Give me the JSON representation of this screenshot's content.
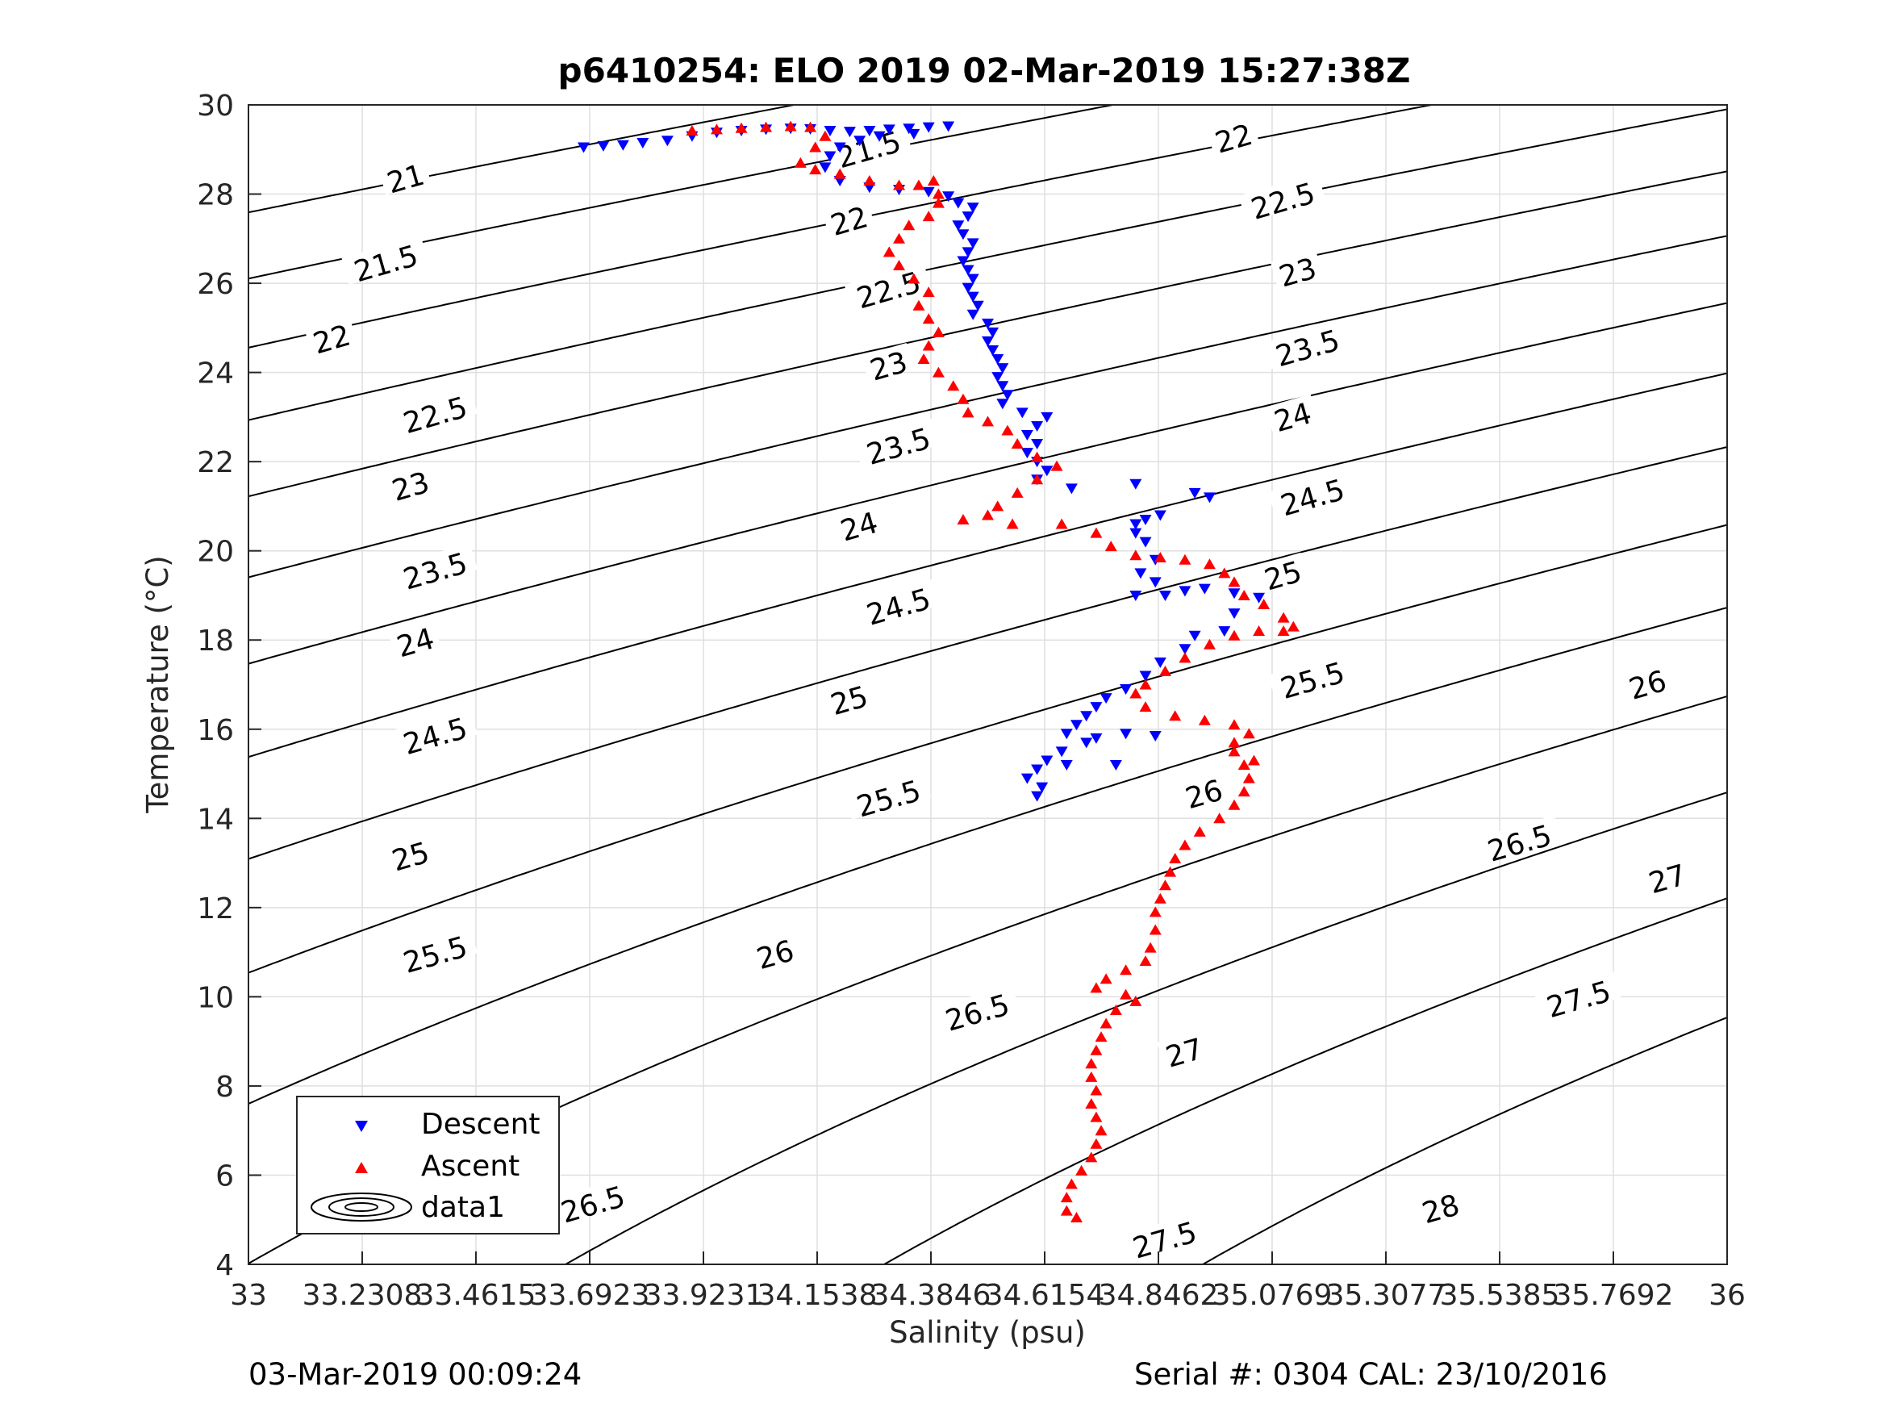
{
  "chart_data": {
    "type": "scatter",
    "title": "p6410254: ELO 2019 02-Mar-2019 15:27:38Z",
    "xlabel": "Salinity (psu)",
    "ylabel": "Temperature (°C)",
    "xlim": [
      33,
      36
    ],
    "ylim": [
      4,
      30
    ],
    "x_ticks": [
      33,
      33.2308,
      33.4615,
      33.6923,
      33.9231,
      34.1538,
      34.3846,
      34.6154,
      34.8462,
      35.0769,
      35.3077,
      35.5385,
      35.7692,
      36
    ],
    "x_tick_labels": [
      "33",
      "33.2308",
      "33.4615",
      "33.6923",
      "33.9231",
      "34.1538",
      "34.3846",
      "34.6154",
      "34.8462",
      "35.0769",
      "35.3077",
      "35.5385",
      "35.7692",
      "36"
    ],
    "y_ticks": [
      4,
      6,
      8,
      10,
      12,
      14,
      16,
      18,
      20,
      22,
      24,
      26,
      28,
      30
    ],
    "y_tick_labels": [
      "4",
      "6",
      "8",
      "10",
      "12",
      "14",
      "16",
      "18",
      "20",
      "22",
      "24",
      "26",
      "28",
      "30"
    ],
    "grid": true,
    "legend_position": "bottom-left",
    "legend": [
      "Descent",
      "Ascent",
      "data1"
    ],
    "series": [
      {
        "name": "Descent",
        "marker": "triangle-down",
        "color": "#0000ff",
        "points": [
          [
            33.68,
            29.05
          ],
          [
            33.72,
            29.08
          ],
          [
            33.76,
            29.1
          ],
          [
            33.8,
            29.15
          ],
          [
            33.85,
            29.2
          ],
          [
            33.9,
            29.3
          ],
          [
            33.95,
            29.38
          ],
          [
            34.0,
            29.42
          ],
          [
            34.05,
            29.45
          ],
          [
            34.1,
            29.47
          ],
          [
            34.14,
            29.46
          ],
          [
            34.18,
            29.42
          ],
          [
            34.22,
            29.4
          ],
          [
            34.26,
            29.42
          ],
          [
            34.3,
            29.45
          ],
          [
            34.34,
            29.47
          ],
          [
            34.38,
            29.5
          ],
          [
            34.42,
            29.52
          ],
          [
            34.35,
            29.35
          ],
          [
            34.28,
            29.3
          ],
          [
            34.24,
            29.2
          ],
          [
            34.2,
            29.05
          ],
          [
            34.18,
            28.85
          ],
          [
            34.17,
            28.6
          ],
          [
            34.2,
            28.3
          ],
          [
            34.26,
            28.15
          ],
          [
            34.32,
            28.1
          ],
          [
            34.38,
            28.05
          ],
          [
            34.42,
            27.95
          ],
          [
            34.44,
            27.8
          ],
          [
            34.47,
            27.7
          ],
          [
            34.46,
            27.5
          ],
          [
            34.44,
            27.3
          ],
          [
            34.45,
            27.1
          ],
          [
            34.47,
            26.9
          ],
          [
            34.46,
            26.7
          ],
          [
            34.45,
            26.5
          ],
          [
            34.46,
            26.3
          ],
          [
            34.47,
            26.1
          ],
          [
            34.46,
            25.9
          ],
          [
            34.47,
            25.7
          ],
          [
            34.48,
            25.5
          ],
          [
            34.47,
            25.3
          ],
          [
            34.5,
            25.1
          ],
          [
            34.51,
            24.9
          ],
          [
            34.5,
            24.7
          ],
          [
            34.51,
            24.5
          ],
          [
            34.52,
            24.3
          ],
          [
            34.53,
            24.1
          ],
          [
            34.52,
            23.9
          ],
          [
            34.53,
            23.7
          ],
          [
            34.54,
            23.5
          ],
          [
            34.53,
            23.3
          ],
          [
            34.57,
            23.1
          ],
          [
            34.62,
            23.0
          ],
          [
            34.6,
            22.8
          ],
          [
            34.58,
            22.6
          ],
          [
            34.6,
            22.4
          ],
          [
            34.58,
            22.2
          ],
          [
            34.6,
            22.0
          ],
          [
            34.62,
            21.8
          ],
          [
            34.6,
            21.6
          ],
          [
            34.67,
            21.4
          ],
          [
            34.8,
            21.5
          ],
          [
            34.82,
            20.7
          ],
          [
            34.8,
            20.4
          ],
          [
            34.85,
            20.8
          ],
          [
            34.92,
            21.3
          ],
          [
            34.95,
            21.2
          ],
          [
            34.8,
            20.6
          ],
          [
            34.82,
            20.2
          ],
          [
            34.84,
            19.8
          ],
          [
            34.81,
            19.5
          ],
          [
            34.84,
            19.3
          ],
          [
            34.8,
            19.0
          ],
          [
            34.86,
            19.0
          ],
          [
            34.9,
            19.1
          ],
          [
            34.94,
            19.15
          ],
          [
            35.0,
            19.05
          ],
          [
            35.05,
            18.95
          ],
          [
            35.0,
            18.6
          ],
          [
            34.98,
            18.2
          ],
          [
            34.92,
            18.1
          ],
          [
            34.9,
            17.8
          ],
          [
            34.85,
            17.5
          ],
          [
            34.82,
            17.2
          ],
          [
            34.78,
            16.9
          ],
          [
            34.74,
            16.7
          ],
          [
            34.72,
            16.5
          ],
          [
            34.7,
            16.3
          ],
          [
            34.68,
            16.1
          ],
          [
            34.66,
            15.9
          ],
          [
            34.72,
            15.8
          ],
          [
            34.78,
            15.9
          ],
          [
            34.84,
            15.85
          ],
          [
            34.7,
            15.7
          ],
          [
            34.65,
            15.5
          ],
          [
            34.62,
            15.3
          ],
          [
            34.6,
            15.1
          ],
          [
            34.58,
            14.9
          ],
          [
            34.61,
            14.7
          ],
          [
            34.6,
            14.5
          ],
          [
            34.76,
            15.2
          ],
          [
            34.66,
            15.2
          ]
        ]
      },
      {
        "name": "Ascent",
        "marker": "triangle-up",
        "color": "#ff0000",
        "points": [
          [
            33.9,
            29.42
          ],
          [
            33.95,
            29.45
          ],
          [
            34.0,
            29.48
          ],
          [
            34.05,
            29.5
          ],
          [
            34.1,
            29.52
          ],
          [
            34.14,
            29.5
          ],
          [
            34.17,
            29.3
          ],
          [
            34.15,
            29.05
          ],
          [
            34.12,
            28.7
          ],
          [
            34.15,
            28.55
          ],
          [
            34.2,
            28.45
          ],
          [
            34.26,
            28.3
          ],
          [
            34.32,
            28.2
          ],
          [
            34.36,
            28.2
          ],
          [
            34.39,
            28.3
          ],
          [
            34.4,
            28.0
          ],
          [
            34.4,
            27.8
          ],
          [
            34.38,
            27.5
          ],
          [
            34.34,
            27.3
          ],
          [
            34.32,
            27.0
          ],
          [
            34.3,
            26.7
          ],
          [
            34.32,
            26.4
          ],
          [
            34.35,
            26.1
          ],
          [
            34.38,
            25.8
          ],
          [
            34.36,
            25.5
          ],
          [
            34.38,
            25.2
          ],
          [
            34.4,
            24.9
          ],
          [
            34.38,
            24.6
          ],
          [
            34.37,
            24.3
          ],
          [
            34.4,
            24.0
          ],
          [
            34.43,
            23.7
          ],
          [
            34.45,
            23.4
          ],
          [
            34.46,
            23.1
          ],
          [
            34.5,
            22.9
          ],
          [
            34.54,
            22.7
          ],
          [
            34.56,
            22.4
          ],
          [
            34.6,
            22.1
          ],
          [
            34.64,
            21.9
          ],
          [
            34.6,
            21.6
          ],
          [
            34.56,
            21.3
          ],
          [
            34.52,
            21.0
          ],
          [
            34.5,
            20.8
          ],
          [
            34.45,
            20.7
          ],
          [
            34.55,
            20.6
          ],
          [
            34.65,
            20.6
          ],
          [
            34.72,
            20.4
          ],
          [
            34.75,
            20.1
          ],
          [
            34.8,
            19.9
          ],
          [
            34.85,
            19.85
          ],
          [
            34.9,
            19.8
          ],
          [
            34.95,
            19.7
          ],
          [
            34.98,
            19.5
          ],
          [
            35.0,
            19.3
          ],
          [
            35.02,
            19.0
          ],
          [
            35.06,
            18.8
          ],
          [
            35.1,
            18.5
          ],
          [
            35.12,
            18.3
          ],
          [
            35.1,
            18.2
          ],
          [
            35.05,
            18.2
          ],
          [
            35.0,
            18.1
          ],
          [
            34.95,
            17.9
          ],
          [
            34.9,
            17.6
          ],
          [
            34.86,
            17.3
          ],
          [
            34.82,
            17.0
          ],
          [
            34.8,
            16.8
          ],
          [
            34.82,
            16.5
          ],
          [
            34.88,
            16.3
          ],
          [
            34.94,
            16.2
          ],
          [
            35.0,
            16.1
          ],
          [
            35.03,
            15.9
          ],
          [
            35.0,
            15.7
          ],
          [
            35.0,
            15.5
          ],
          [
            35.02,
            15.2
          ],
          [
            35.03,
            14.9
          ],
          [
            35.02,
            14.6
          ],
          [
            35.0,
            14.3
          ],
          [
            34.97,
            14.0
          ],
          [
            34.93,
            13.7
          ],
          [
            34.9,
            13.4
          ],
          [
            34.88,
            13.1
          ],
          [
            34.87,
            12.8
          ],
          [
            34.86,
            12.5
          ],
          [
            34.85,
            12.2
          ],
          [
            34.84,
            11.9
          ],
          [
            34.84,
            11.5
          ],
          [
            34.83,
            11.1
          ],
          [
            34.82,
            10.8
          ],
          [
            34.78,
            10.6
          ],
          [
            34.74,
            10.4
          ],
          [
            34.72,
            10.2
          ],
          [
            34.78,
            10.05
          ],
          [
            34.8,
            9.9
          ],
          [
            34.76,
            9.7
          ],
          [
            34.74,
            9.4
          ],
          [
            34.73,
            9.1
          ],
          [
            34.72,
            8.8
          ],
          [
            34.71,
            8.5
          ],
          [
            34.71,
            8.2
          ],
          [
            34.72,
            7.9
          ],
          [
            34.71,
            7.6
          ],
          [
            34.72,
            7.3
          ],
          [
            34.73,
            7.0
          ],
          [
            34.72,
            6.7
          ],
          [
            34.71,
            6.4
          ],
          [
            34.69,
            6.1
          ],
          [
            34.67,
            5.8
          ],
          [
            34.66,
            5.5
          ],
          [
            34.66,
            5.2
          ],
          [
            34.68,
            5.05
          ],
          [
            35.04,
            15.3
          ]
        ]
      }
    ],
    "isopycnals": {
      "name": "data1",
      "levels": [
        21,
        21.5,
        22,
        22.5,
        23,
        23.5,
        24,
        24.5,
        25,
        25.5,
        26,
        26.5,
        27,
        27.5,
        28
      ],
      "labels": [
        {
          "text": "21",
          "x": 33.32,
          "t": 28.3
        },
        {
          "text": "21.5",
          "x": 33.28,
          "t": 26.4
        },
        {
          "text": "22",
          "x": 33.17,
          "t": 24.7
        },
        {
          "text": "22.5",
          "x": 33.38,
          "t": 23.0
        },
        {
          "text": "23",
          "x": 33.33,
          "t": 21.4
        },
        {
          "text": "23.5",
          "x": 33.38,
          "t": 19.5
        },
        {
          "text": "24",
          "x": 33.34,
          "t": 17.9
        },
        {
          "text": "24.5",
          "x": 33.38,
          "t": 15.8
        },
        {
          "text": "25",
          "x": 33.33,
          "t": 13.1
        },
        {
          "text": "25.5",
          "x": 33.38,
          "t": 10.9
        },
        {
          "text": "26.5",
          "x": 33.7,
          "t": 5.3
        },
        {
          "text": "21.5",
          "x": 34.26,
          "t": 28.95
        },
        {
          "text": "22",
          "x": 34.22,
          "t": 27.35
        },
        {
          "text": "22.5",
          "x": 34.3,
          "t": 25.8
        },
        {
          "text": "23",
          "x": 34.3,
          "t": 24.1
        },
        {
          "text": "23.5",
          "x": 34.32,
          "t": 22.3
        },
        {
          "text": "24",
          "x": 34.24,
          "t": 20.5
        },
        {
          "text": "24.5",
          "x": 34.32,
          "t": 18.7
        },
        {
          "text": "25",
          "x": 34.22,
          "t": 16.6
        },
        {
          "text": "25.5",
          "x": 34.3,
          "t": 14.4
        },
        {
          "text": "26",
          "x": 34.07,
          "t": 10.9
        },
        {
          "text": "26.5",
          "x": 34.48,
          "t": 9.6
        },
        {
          "text": "27",
          "x": 34.9,
          "t": 8.7
        },
        {
          "text": "27.5",
          "x": 34.86,
          "t": 4.5
        },
        {
          "text": "26",
          "x": 34.94,
          "t": 14.5
        },
        {
          "text": "22",
          "x": 35.0,
          "t": 29.2
        },
        {
          "text": "22.5",
          "x": 35.1,
          "t": 27.8
        },
        {
          "text": "23",
          "x": 35.13,
          "t": 26.2
        },
        {
          "text": "23.5",
          "x": 35.15,
          "t": 24.5
        },
        {
          "text": "24",
          "x": 35.12,
          "t": 22.95
        },
        {
          "text": "24.5",
          "x": 35.16,
          "t": 21.15
        },
        {
          "text": "25",
          "x": 35.1,
          "t": 19.4
        },
        {
          "text": "25.5",
          "x": 35.16,
          "t": 17.05
        },
        {
          "text": "26",
          "x": 35.84,
          "t": 16.95
        },
        {
          "text": "26.5",
          "x": 35.58,
          "t": 13.4
        },
        {
          "text": "27",
          "x": 35.88,
          "t": 12.6
        },
        {
          "text": "27.5",
          "x": 35.7,
          "t": 9.9
        },
        {
          "text": "28",
          "x": 35.42,
          "t": 5.2
        }
      ]
    }
  },
  "footer": {
    "timestamp": "03-Mar-2019 00:09:24",
    "serial": "Serial #: 0304  CAL: 23/10/2016"
  }
}
